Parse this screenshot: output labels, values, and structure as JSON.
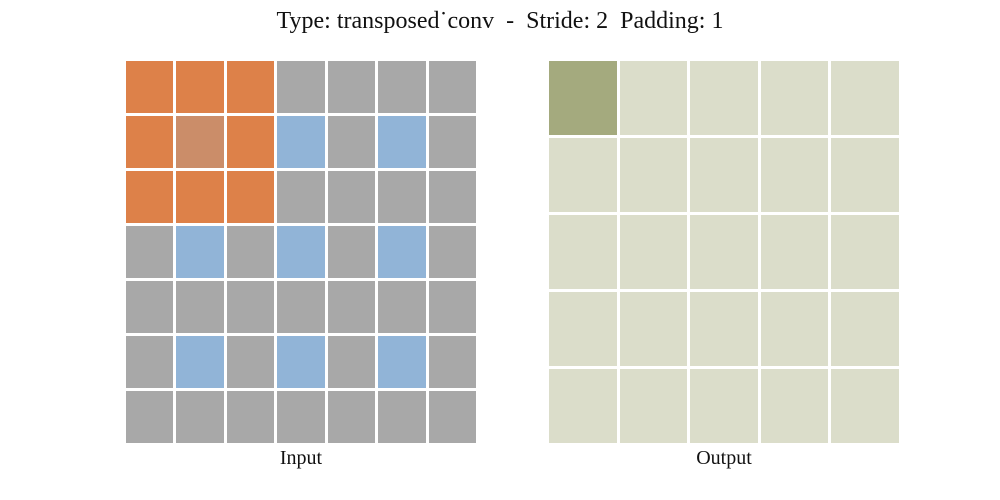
{
  "figure": {
    "title": "Type: transposed˙conv  -  Stride: 2  Padding: 1",
    "params": {
      "type": "transposed˙conv",
      "stride": "2",
      "padding": "1"
    }
  },
  "colors": {
    "orange": "#dd8149",
    "orange_blue_overlap": "#cb8d69",
    "blue": "#91b4d7",
    "gray": "#a8a8a8",
    "beige": "#dbddca",
    "olive": "#a4aa7e",
    "background": "#ffffff",
    "text": "#111111"
  },
  "input_grid": {
    "label": "Input",
    "rows": 7,
    "cols": 7,
    "cells": [
      [
        "orange",
        "orange",
        "orange",
        "gray",
        "gray",
        "gray",
        "gray"
      ],
      [
        "orange",
        "orange_blue_overlap",
        "orange",
        "blue",
        "gray",
        "blue",
        "gray"
      ],
      [
        "orange",
        "orange",
        "orange",
        "gray",
        "gray",
        "gray",
        "gray"
      ],
      [
        "gray",
        "blue",
        "gray",
        "blue",
        "gray",
        "blue",
        "gray"
      ],
      [
        "gray",
        "gray",
        "gray",
        "gray",
        "gray",
        "gray",
        "gray"
      ],
      [
        "gray",
        "blue",
        "gray",
        "blue",
        "gray",
        "blue",
        "gray"
      ],
      [
        "gray",
        "gray",
        "gray",
        "gray",
        "gray",
        "gray",
        "gray"
      ]
    ]
  },
  "output_grid": {
    "label": "Output",
    "rows": 5,
    "cols": 5,
    "cells": [
      [
        "olive",
        "beige",
        "beige",
        "beige",
        "beige"
      ],
      [
        "beige",
        "beige",
        "beige",
        "beige",
        "beige"
      ],
      [
        "beige",
        "beige",
        "beige",
        "beige",
        "beige"
      ],
      [
        "beige",
        "beige",
        "beige",
        "beige",
        "beige"
      ],
      [
        "beige",
        "beige",
        "beige",
        "beige",
        "beige"
      ]
    ]
  }
}
